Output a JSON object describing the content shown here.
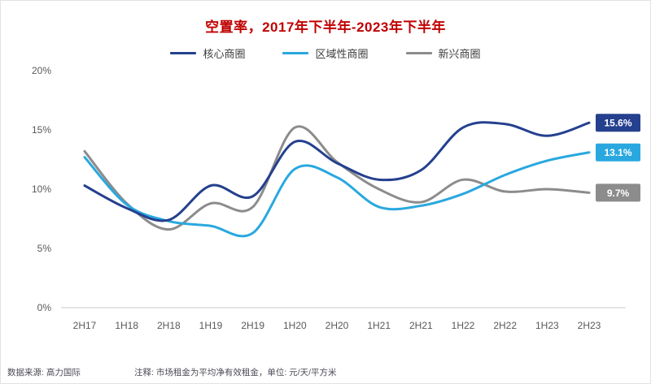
{
  "page": {
    "source_note": "数据来源: 高力国际",
    "annotation": "注释: 市场租金为平均净有效租金，单位: 元/天/平方米"
  },
  "colors": {
    "title": "#C00000",
    "core_line": "#24408E",
    "regional_line": "#29A8DF",
    "emerging_line": "#8C8C8C",
    "axis_line": "#c8c8c8",
    "tick_text": "#595959"
  },
  "chart_data": {
    "type": "line",
    "title": "空置率，2017年下半年-2023年下半年",
    "xlabel": "",
    "ylabel": "",
    "ylim": [
      0,
      20
    ],
    "yticks": [
      0,
      5,
      10,
      15,
      20
    ],
    "ytick_labels": [
      "0%",
      "5%",
      "10%",
      "15%",
      "20%"
    ],
    "grid": false,
    "legend_position": "top",
    "categories": [
      "2H17",
      "1H18",
      "2H18",
      "1H19",
      "2H19",
      "1H20",
      "2H20",
      "1H21",
      "2H21",
      "1H22",
      "2H22",
      "1H23",
      "2H23"
    ],
    "series": [
      {
        "name": "核心商圈",
        "color": "#24408E",
        "end_label": "15.6%",
        "values": [
          10.3,
          8.4,
          7.4,
          10.3,
          9.4,
          14.0,
          12.2,
          10.8,
          11.6,
          15.2,
          15.5,
          14.5,
          15.6
        ]
      },
      {
        "name": "区域性商圈",
        "color": "#29A8DF",
        "end_label": "13.1%",
        "values": [
          12.7,
          8.7,
          7.3,
          6.9,
          6.3,
          11.7,
          11.0,
          8.5,
          8.6,
          9.6,
          11.2,
          12.4,
          13.1
        ]
      },
      {
        "name": "新兴商圈",
        "color": "#8C8C8C",
        "end_label": "9.7%",
        "values": [
          13.2,
          8.8,
          6.6,
          8.8,
          8.5,
          15.2,
          12.3,
          10.0,
          8.9,
          10.8,
          9.8,
          10.0,
          9.7
        ]
      }
    ]
  }
}
